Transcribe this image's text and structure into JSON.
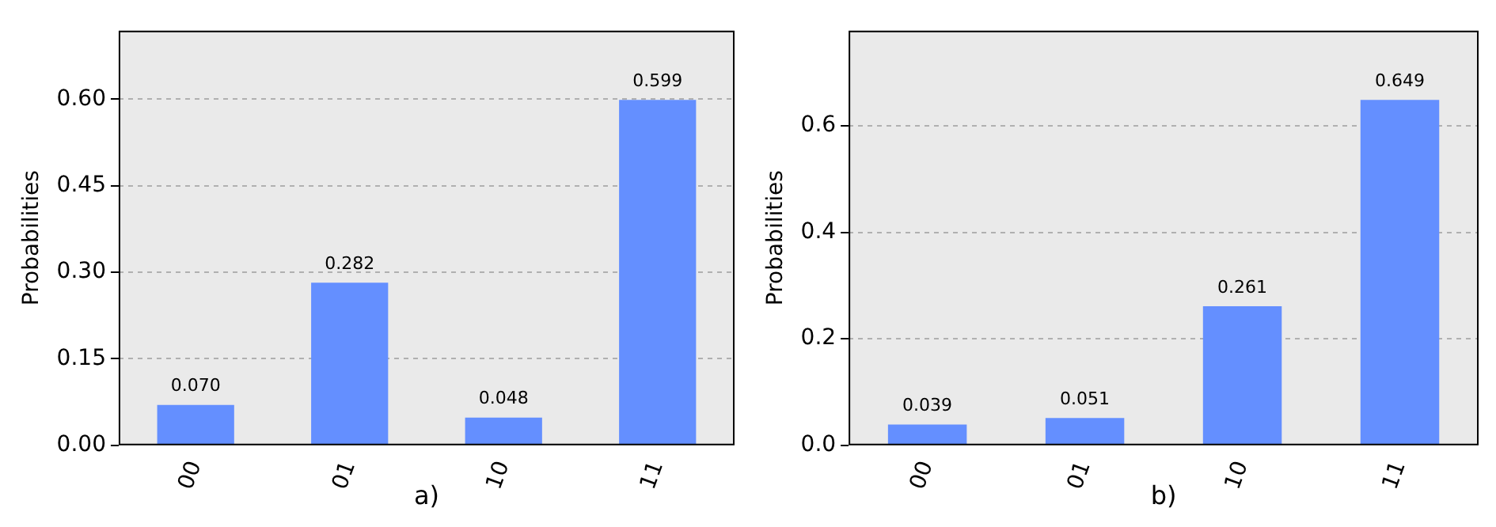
{
  "chart_data": [
    {
      "type": "bar",
      "xlabel": "a)",
      "ylabel": "Probabilities",
      "categories": [
        "00",
        "01",
        "10",
        "11"
      ],
      "values": [
        0.07,
        0.282,
        0.048,
        0.599
      ],
      "value_labels": [
        "0.070",
        "0.282",
        "0.048",
        "0.599"
      ],
      "color": "#648fff",
      "ylim": [
        0,
        0.719
      ],
      "yticks": [
        {
          "value": 0,
          "label": "0.00"
        },
        {
          "value": 0.15,
          "label": "0.15"
        },
        {
          "value": 0.3,
          "label": "0.30"
        },
        {
          "value": 0.45,
          "label": "0.45"
        },
        {
          "value": 0.6,
          "label": "0.60"
        }
      ],
      "grid": "y"
    },
    {
      "type": "bar",
      "xlabel": "b)",
      "ylabel": "Probabilities",
      "categories": [
        "00",
        "01",
        "10",
        "11"
      ],
      "values": [
        0.039,
        0.051,
        0.261,
        0.649
      ],
      "value_labels": [
        "0.039",
        "0.051",
        "0.261",
        "0.649"
      ],
      "color": "#648fff",
      "ylim": [
        0,
        0.779
      ],
      "yticks": [
        {
          "value": 0,
          "label": "0.0"
        },
        {
          "value": 0.2,
          "label": "0.2"
        },
        {
          "value": 0.4,
          "label": "0.4"
        },
        {
          "value": 0.6,
          "label": "0.6"
        }
      ],
      "grid": "y"
    }
  ]
}
